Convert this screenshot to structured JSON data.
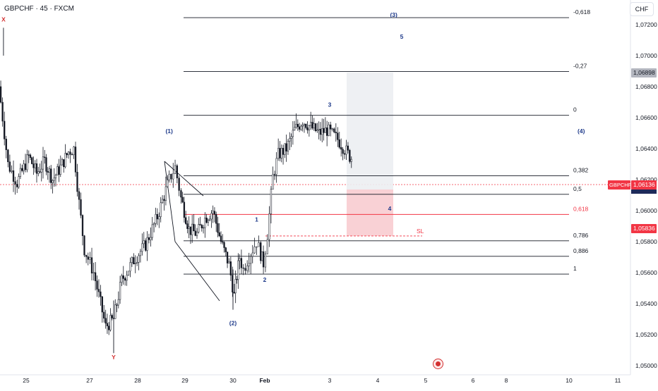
{
  "header": {
    "title": "GBPCHF · 45 · FXCM",
    "currency": "CHF"
  },
  "price_badges": {
    "highlight": "1,06898",
    "stop_loss": "1,05836",
    "current_symbol": "GBPCHF",
    "current_price": "1,06136"
  },
  "colors": {
    "bull": "#26a69a",
    "candle": "#131722",
    "wave_label": "#1e3a8a",
    "xy_label": "#d32f2f",
    "fib_red": "#f23645",
    "fib_line": "#131722"
  },
  "chart_data": {
    "type": "candlestick",
    "symbol": "GBPCHF",
    "timeframe": "45",
    "source": "FXCM",
    "ylim": [
      1.0494,
      1.0735
    ],
    "x_ticks": [
      "25",
      "27",
      "28",
      "29",
      "30",
      "Feb",
      "3",
      "4",
      "5",
      "6",
      "8",
      "10",
      "11"
    ],
    "y_ticks": [
      "1,07200",
      "1,07000",
      "1,06800",
      "1,06600",
      "1,06400",
      "1,06200",
      "1,06000",
      "1,05800",
      "1,05600",
      "1,05400",
      "1,05200",
      "1,05000"
    ],
    "price_path": [
      {
        "x": "24 Jan 00:00",
        "y": 1.0688
      },
      {
        "x": "24 Jan 04:00",
        "y": 1.0705
      },
      {
        "x": "24 Jan 08:00",
        "y": 1.0712
      },
      {
        "x": "24 Jan 12:00",
        "y": 1.068
      },
      {
        "x": "24 Jan 16:00",
        "y": 1.063
      },
      {
        "x": "24 Jan 20:00",
        "y": 1.0618
      },
      {
        "x": "25 Jan 02:00",
        "y": 1.0635
      },
      {
        "x": "25 Jan 08:00",
        "y": 1.0624
      },
      {
        "x": "25 Jan 14:00",
        "y": 1.0632
      },
      {
        "x": "25 Jan 20:00",
        "y": 1.062
      },
      {
        "x": "26 Jan 02:00",
        "y": 1.0628
      },
      {
        "x": "26 Jan 08:00",
        "y": 1.0638
      },
      {
        "x": "26 Jan 12:00",
        "y": 1.064
      },
      {
        "x": "26 Jan 16:00",
        "y": 1.0605
      },
      {
        "x": "26 Jan 20:00",
        "y": 1.0575
      },
      {
        "x": "27 Jan 02:00",
        "y": 1.056
      },
      {
        "x": "27 Jan 08:00",
        "y": 1.0525
      },
      {
        "x": "27 Jan 12:00",
        "y": 1.053
      },
      {
        "x": "27 Jan 16:00",
        "y": 1.0555
      },
      {
        "x": "27 Jan 22:00",
        "y": 1.0568
      },
      {
        "x": "28 Jan 04:00",
        "y": 1.0578
      },
      {
        "x": "28 Jan 10:00",
        "y": 1.0596
      },
      {
        "x": "28 Jan 16:00",
        "y": 1.062
      },
      {
        "x": "28 Jan 19:00",
        "y": 1.0628
      },
      {
        "x": "28 Jan 22:00",
        "y": 1.0608
      },
      {
        "x": "29 Jan 02:00",
        "y": 1.0588
      },
      {
        "x": "29 Jan 06:00",
        "y": 1.0585
      },
      {
        "x": "29 Jan 10:00",
        "y": 1.0595
      },
      {
        "x": "29 Jan 14:00",
        "y": 1.06
      },
      {
        "x": "29 Jan 18:00",
        "y": 1.058
      },
      {
        "x": "29 Jan 22:00",
        "y": 1.0565
      },
      {
        "x": "30 Jan 02:00",
        "y": 1.0545
      },
      {
        "x": "30 Jan 06:00",
        "y": 1.0558
      },
      {
        "x": "30 Jan 10:00",
        "y": 1.057
      },
      {
        "x": "30 Jan 16:00",
        "y": 1.0562
      },
      {
        "x": "30 Jan 22:00",
        "y": 1.0568
      },
      {
        "x": "31 Jan 06:00",
        "y": 1.0575
      },
      {
        "x": "31 Jan 12:00",
        "y": 1.058
      },
      {
        "x": "31 Jan 18:00",
        "y": 1.0572
      },
      {
        "x": "31 Jan 22:00",
        "y": 1.0566
      },
      {
        "x": "1 Feb 02:00",
        "y": 1.0585
      },
      {
        "x": "1 Feb 06:00",
        "y": 1.0622
      },
      {
        "x": "1 Feb 10:00",
        "y": 1.0636
      },
      {
        "x": "1 Feb 16:00",
        "y": 1.064
      },
      {
        "x": "1 Feb 22:00",
        "y": 1.0652
      },
      {
        "x": "2 Feb 04:00",
        "y": 1.0658
      },
      {
        "x": "2 Feb 10:00",
        "y": 1.0654
      },
      {
        "x": "2 Feb 16:00",
        "y": 1.065
      },
      {
        "x": "2 Feb 22:00",
        "y": 1.0652
      },
      {
        "x": "3 Feb 04:00",
        "y": 1.0646
      },
      {
        "x": "3 Feb 10:00",
        "y": 1.0635
      },
      {
        "x": "3 Feb 16:00",
        "y": 1.0628
      },
      {
        "x": "3 Feb 20:00",
        "y": 1.062
      },
      {
        "x": "4 Feb 00:00",
        "y": 1.0613
      }
    ],
    "horizontal_levels": [
      {
        "label": "-0,618",
        "price": 1.07245,
        "color": "#131722"
      },
      {
        "label": "-0,27",
        "price": 1.06898,
        "color": "#131722"
      },
      {
        "label": "0",
        "price": 1.06615,
        "color": "#131722"
      },
      {
        "label": "0,382",
        "price": 1.06225,
        "color": "#131722"
      },
      {
        "label": "0,5",
        "price": 1.06105,
        "color": "#131722"
      },
      {
        "label": "0,618",
        "price": 1.05975,
        "color": "#f23645"
      },
      {
        "label": "0,786",
        "price": 1.05805,
        "color": "#131722"
      },
      {
        "label": "0,886",
        "price": 1.05705,
        "color": "#131722"
      },
      {
        "label": "1",
        "price": 1.0559,
        "color": "#131722"
      }
    ],
    "stop_loss": {
      "label": "SL",
      "price": 1.05836
    },
    "current_price": 1.06136,
    "wave_labels": [
      {
        "text": "X",
        "x": "24 Jan 14:00",
        "price": 1.0722,
        "color": "#d32f2f"
      },
      {
        "text": "Y",
        "x": "27 Jan 12:00",
        "price": 1.0504,
        "color": "#d32f2f"
      },
      {
        "text": "(1)",
        "x": "28 Jan 16:00",
        "price": 1.065,
        "color": "#1e3a8a"
      },
      {
        "text": "(2)",
        "x": "30 Jan 00:00",
        "price": 1.0526,
        "color": "#1e3a8a"
      },
      {
        "text": "(3)",
        "x": "4 Feb 08:00",
        "price": 1.0725,
        "color": "#1e3a8a"
      },
      {
        "text": "(4)",
        "x": "10 Feb 06:00",
        "price": 1.065,
        "color": "#1e3a8a"
      },
      {
        "text": "1",
        "x": "31 Jan 12:00",
        "price": 1.0593,
        "color": "#1e3a8a"
      },
      {
        "text": "2",
        "x": "1 Feb 00:00",
        "price": 1.0554,
        "color": "#1e3a8a"
      },
      {
        "text": "3",
        "x": "3 Feb 00:00",
        "price": 1.0667,
        "color": "#1e3a8a"
      },
      {
        "text": "4",
        "x": "4 Feb 06:00",
        "price": 1.06,
        "color": "#1e3a8a"
      },
      {
        "text": "5",
        "x": "4 Feb 12:00",
        "price": 1.0711,
        "color": "#1e3a8a"
      }
    ]
  }
}
